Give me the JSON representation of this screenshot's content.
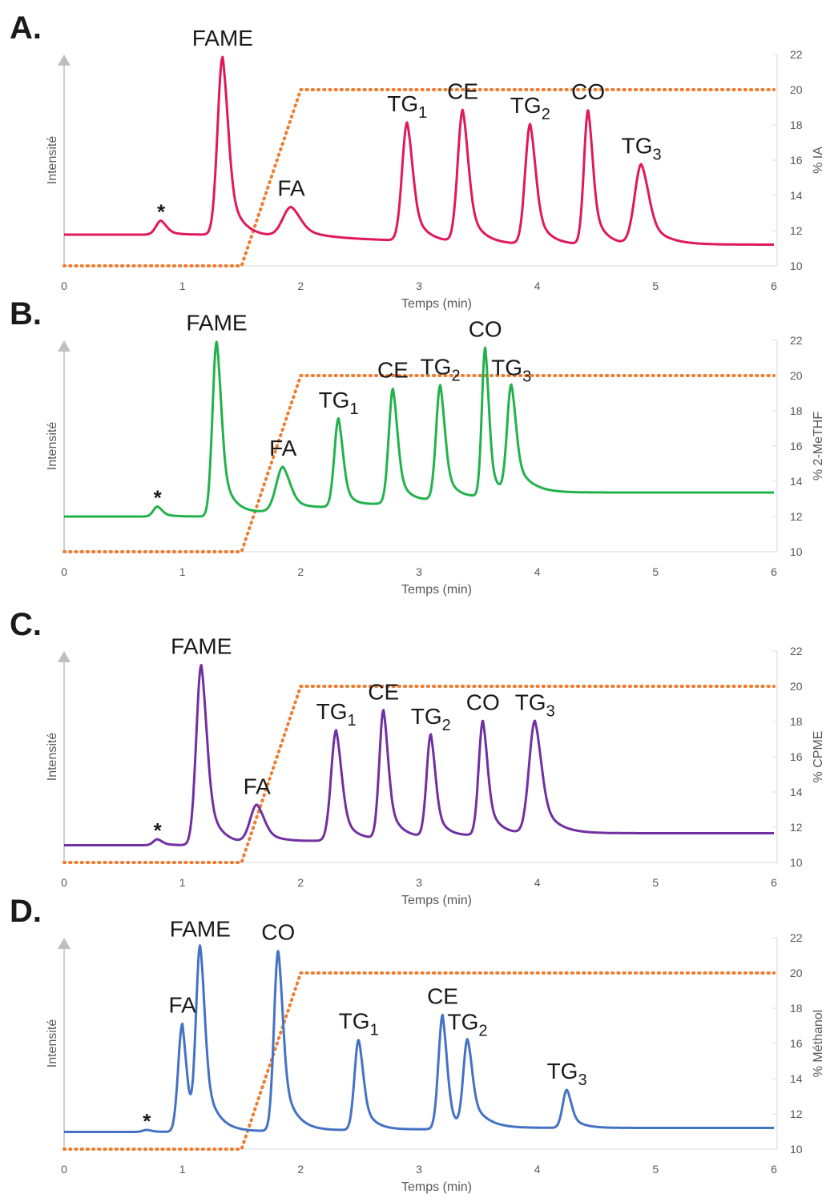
{
  "chart_data": [
    {
      "type": "line",
      "panel": "A.",
      "xlabel": "Temps (min)",
      "ylabel": "Intensité",
      "y2label": "% IA",
      "xlim": [
        0,
        6
      ],
      "y2lim": [
        10,
        22
      ],
      "xticks": [
        "0",
        "1",
        "2",
        "3",
        "4",
        "5",
        "6"
      ],
      "y2ticks": [
        "10",
        "12",
        "14",
        "16",
        "18",
        "20",
        "22"
      ],
      "color": "#e0185e",
      "baseline_start": 0.1,
      "baseline_end": 0.05,
      "gradient": {
        "x": [
          0,
          1.5,
          2.0,
          6
        ],
        "y": [
          10,
          10,
          20,
          20
        ]
      },
      "peaks": [
        {
          "label": "*",
          "sub": "",
          "t": 0.82,
          "h": 0.07,
          "w": 0.06,
          "tail": 0.08
        },
        {
          "label": "FAME",
          "sub": "",
          "t": 1.34,
          "h": 0.89,
          "w": 0.06,
          "tail": 0.1
        },
        {
          "label": "FA",
          "sub": "",
          "t": 1.92,
          "h": 0.15,
          "w": 0.1,
          "tail": 0.18
        },
        {
          "label": "TG",
          "sub": "1",
          "t": 2.9,
          "h": 0.59,
          "w": 0.06,
          "tail": 0.1
        },
        {
          "label": "CE",
          "sub": "",
          "t": 3.37,
          "h": 0.66,
          "w": 0.06,
          "tail": 0.1
        },
        {
          "label": "TG",
          "sub": "2",
          "t": 3.94,
          "h": 0.6,
          "w": 0.06,
          "tail": 0.1
        },
        {
          "label": "CO",
          "sub": "",
          "t": 4.43,
          "h": 0.67,
          "w": 0.05,
          "tail": 0.09
        },
        {
          "label": "TG",
          "sub": "3",
          "t": 4.88,
          "h": 0.4,
          "w": 0.08,
          "tail": 0.14
        }
      ]
    },
    {
      "type": "line",
      "panel": "B.",
      "xlabel": "Temps (min)",
      "ylabel": "Intensité",
      "y2label": "% 2-MeTHF",
      "xlim": [
        0,
        6
      ],
      "y2lim": [
        10,
        22
      ],
      "xticks": [
        "0",
        "1",
        "2",
        "3",
        "4",
        "5",
        "6"
      ],
      "y2ticks": [
        "10",
        "12",
        "14",
        "16",
        "18",
        "20",
        "22"
      ],
      "color": "#22b24c",
      "baseline_start": 0.12,
      "baseline_end": 0.24,
      "gradient": {
        "x": [
          0,
          1.5,
          2.0,
          6
        ],
        "y": [
          10,
          10,
          20,
          20
        ]
      },
      "peaks": [
        {
          "label": "*",
          "sub": "",
          "t": 0.79,
          "h": 0.05,
          "w": 0.05,
          "tail": 0.08
        },
        {
          "label": "FAME",
          "sub": "",
          "t": 1.29,
          "h": 0.87,
          "w": 0.05,
          "tail": 0.09
        },
        {
          "label": "FA",
          "sub": "",
          "t": 1.85,
          "h": 0.22,
          "w": 0.08,
          "tail": 0.12
        },
        {
          "label": "TG",
          "sub": "1",
          "t": 2.32,
          "h": 0.44,
          "w": 0.05,
          "tail": 0.07
        },
        {
          "label": "CE",
          "sub": "",
          "t": 2.78,
          "h": 0.57,
          "w": 0.05,
          "tail": 0.08
        },
        {
          "label": "TG",
          "sub": "2",
          "t": 3.18,
          "h": 0.57,
          "w": 0.05,
          "tail": 0.08
        },
        {
          "label": "CO",
          "sub": "",
          "t": 3.56,
          "h": 0.74,
          "w": 0.04,
          "tail": 0.06
        },
        {
          "label": "TG",
          "sub": "3",
          "t": 3.78,
          "h": 0.54,
          "w": 0.05,
          "tail": 0.11
        }
      ]
    },
    {
      "type": "line",
      "panel": "C.",
      "xlabel": "Temps (min)",
      "ylabel": "Intensité",
      "y2label": "% CPME",
      "xlim": [
        0,
        6
      ],
      "y2lim": [
        10,
        22
      ],
      "xticks": [
        "0",
        "1",
        "2",
        "3",
        "4",
        "5",
        "6"
      ],
      "y2ticks": [
        "10",
        "12",
        "14",
        "16",
        "18",
        "20",
        "22"
      ],
      "color": "#7030a0",
      "baseline_start": 0.03,
      "baseline_end": 0.09,
      "gradient": {
        "x": [
          0,
          1.5,
          2.0,
          6
        ],
        "y": [
          10,
          10,
          20,
          20
        ]
      },
      "peaks": [
        {
          "label": "*",
          "sub": "",
          "t": 0.79,
          "h": 0.03,
          "w": 0.05,
          "tail": 0.08
        },
        {
          "label": "FAME",
          "sub": "",
          "t": 1.16,
          "h": 0.9,
          "w": 0.06,
          "tail": 0.1
        },
        {
          "label": "FA",
          "sub": "",
          "t": 1.63,
          "h": 0.19,
          "w": 0.08,
          "tail": 0.14
        },
        {
          "label": "TG",
          "sub": "1",
          "t": 2.3,
          "h": 0.55,
          "w": 0.06,
          "tail": 0.09
        },
        {
          "label": "CE",
          "sub": "",
          "t": 2.7,
          "h": 0.64,
          "w": 0.05,
          "tail": 0.09
        },
        {
          "label": "TG",
          "sub": "2",
          "t": 3.1,
          "h": 0.51,
          "w": 0.05,
          "tail": 0.08
        },
        {
          "label": "CO",
          "sub": "",
          "t": 3.54,
          "h": 0.57,
          "w": 0.05,
          "tail": 0.09
        },
        {
          "label": "TG",
          "sub": "3",
          "t": 3.98,
          "h": 0.56,
          "w": 0.07,
          "tail": 0.12
        }
      ]
    },
    {
      "type": "line",
      "panel": "D.",
      "xlabel": "Temps (min)",
      "ylabel": "Intensité",
      "y2label": "% Méthanol",
      "xlim": [
        0,
        6
      ],
      "y2lim": [
        10,
        22
      ],
      "xticks": [
        "0",
        "1",
        "2",
        "3",
        "4",
        "5",
        "6"
      ],
      "y2ticks": [
        "10",
        "12",
        "14",
        "16",
        "18",
        "20",
        "22"
      ],
      "color": "#4472c4",
      "baseline_start": 0.03,
      "baseline_end": 0.05,
      "gradient": {
        "x": [
          0,
          1.5,
          2.0,
          6
        ],
        "y": [
          10,
          10,
          20,
          20
        ]
      },
      "peaks": [
        {
          "label": "*",
          "sub": "",
          "t": 0.7,
          "h": 0.01,
          "w": 0.05,
          "tail": 0.08
        },
        {
          "label": "FA",
          "sub": "",
          "t": 1.0,
          "h": 0.54,
          "w": 0.05,
          "tail": 0.05
        },
        {
          "label": "FAME",
          "sub": "",
          "t": 1.15,
          "h": 0.92,
          "w": 0.05,
          "tail": 0.1
        },
        {
          "label": "CO",
          "sub": "",
          "t": 1.81,
          "h": 0.9,
          "w": 0.05,
          "tail": 0.1
        },
        {
          "label": "TG",
          "sub": "1",
          "t": 2.49,
          "h": 0.45,
          "w": 0.05,
          "tail": 0.09
        },
        {
          "label": "CE",
          "sub": "",
          "t": 3.2,
          "h": 0.57,
          "w": 0.05,
          "tail": 0.06
        },
        {
          "label": "TG",
          "sub": "2",
          "t": 3.41,
          "h": 0.44,
          "w": 0.05,
          "tail": 0.12
        },
        {
          "label": "TG",
          "sub": "3",
          "t": 4.25,
          "h": 0.19,
          "w": 0.05,
          "tail": 0.09
        }
      ]
    }
  ]
}
